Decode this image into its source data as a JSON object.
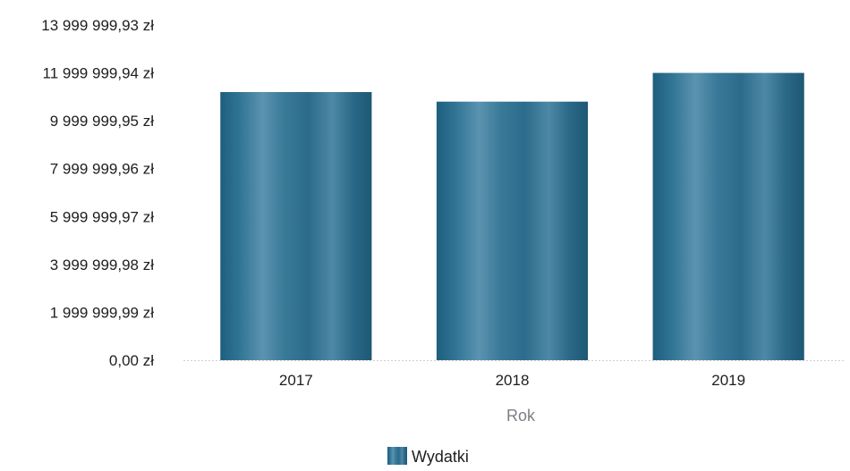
{
  "chart_data": {
    "type": "bar",
    "categories": [
      "2017",
      "2018",
      "2019"
    ],
    "series": [
      {
        "name": "Wydatki",
        "values": [
          11200000,
          10800000,
          12000000
        ]
      }
    ],
    "xlabel": "Rok",
    "ylabel": "",
    "ylim": [
      0,
      14000000
    ],
    "yticks": [
      {
        "value": 0,
        "label": "0,00 zł"
      },
      {
        "value": 2000000,
        "label": "1 999 999,99 zł"
      },
      {
        "value": 4000000,
        "label": "3 999 999,98 zł"
      },
      {
        "value": 6000000,
        "label": "5 999 999,97 zł"
      },
      {
        "value": 8000000,
        "label": "7 999 999,96 zł"
      },
      {
        "value": 10000000,
        "label": "9 999 999,95 zł"
      },
      {
        "value": 12000000,
        "label": "11 999 999,94 zł"
      },
      {
        "value": 14000000,
        "label": "13 999 999,93 zł"
      }
    ],
    "grid": false,
    "legend_position": "bottom",
    "bar_color": "#2f6f8e"
  }
}
